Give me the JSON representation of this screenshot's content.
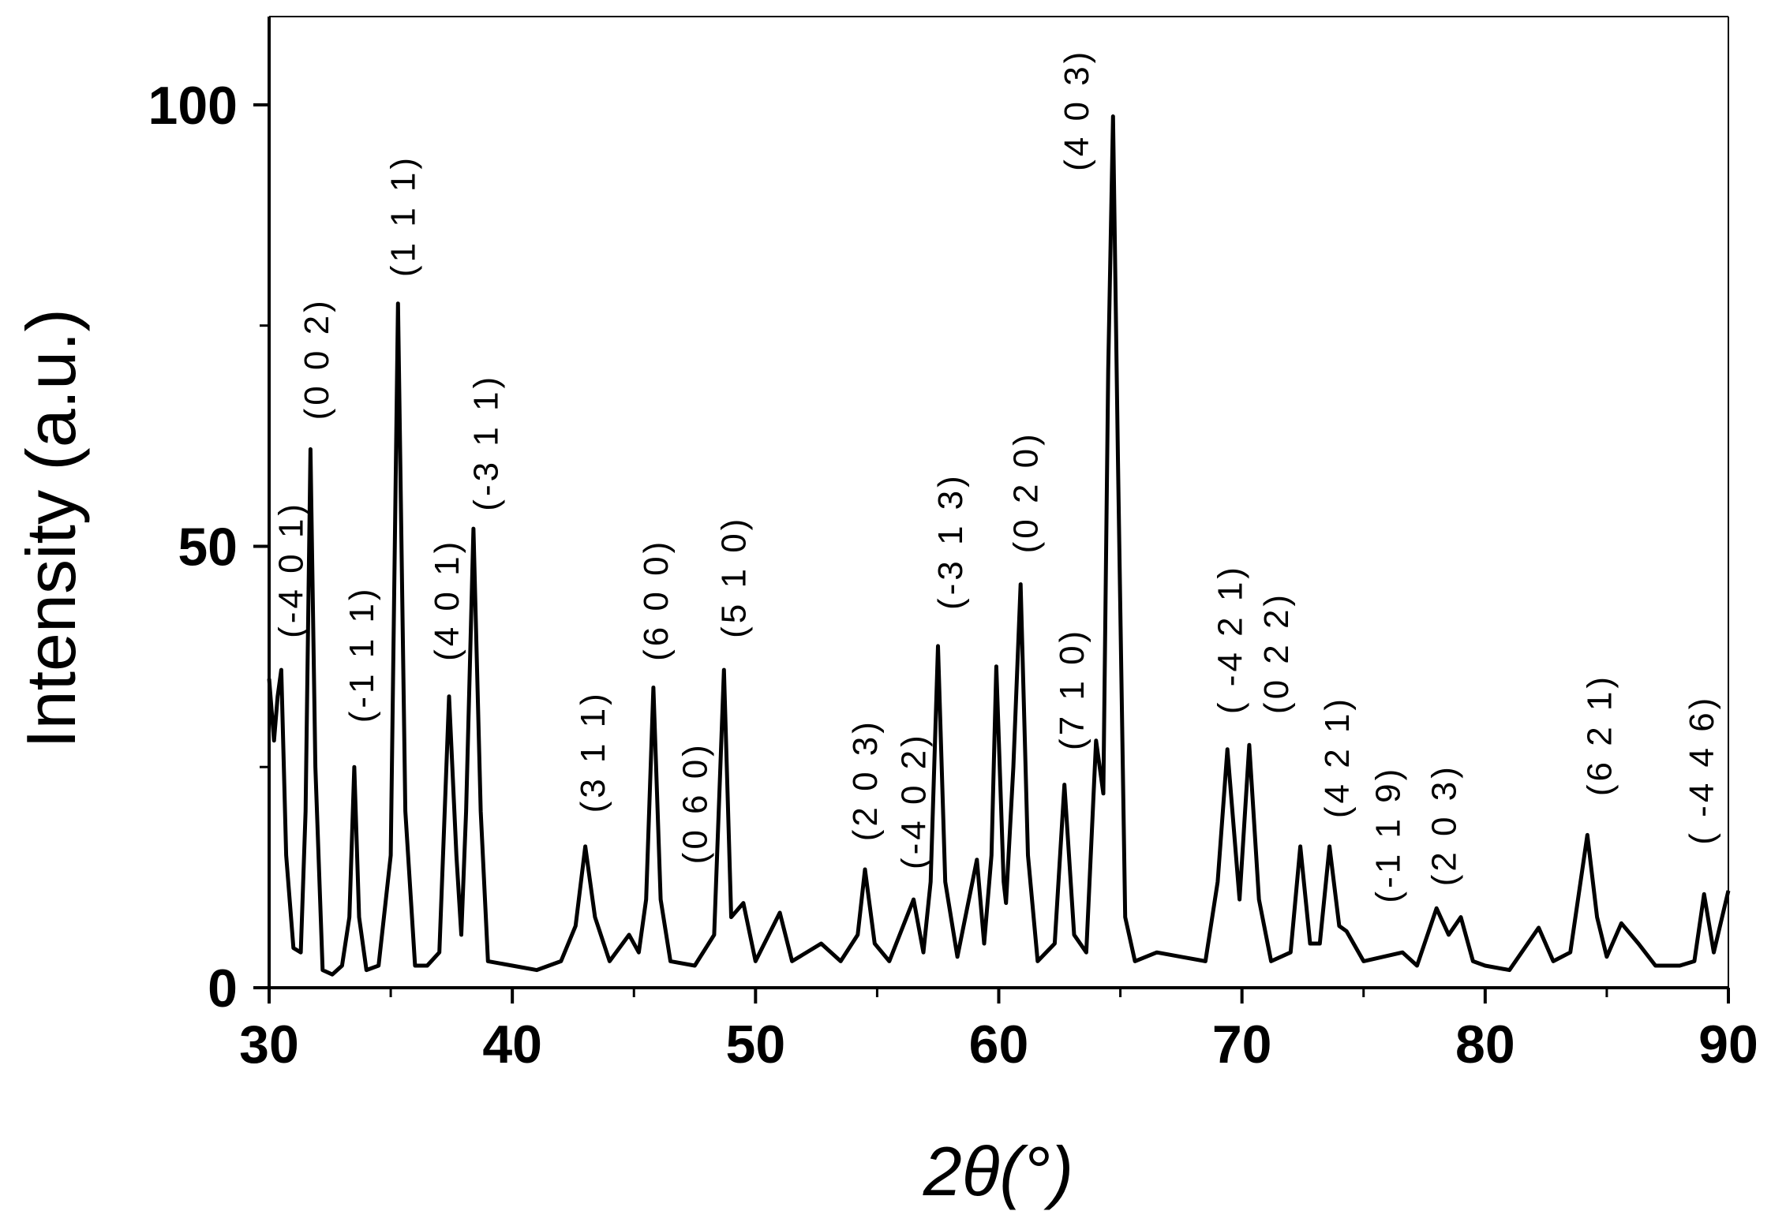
{
  "chart_data": {
    "type": "line",
    "xlabel": "2θ(°)",
    "ylabel": "Intensity (a.u.)",
    "xlim": [
      30,
      90
    ],
    "xticks": [
      30,
      40,
      50,
      60,
      70,
      80,
      90
    ],
    "xminor": [
      35,
      45,
      55,
      65,
      75,
      85
    ],
    "ylim": [
      0,
      110
    ],
    "yticks": [
      0,
      50,
      100
    ],
    "yminor": [
      25,
      75
    ],
    "x": [
      30,
      30.2,
      30.35,
      30.5,
      30.7,
      31.0,
      31.3,
      31.5,
      31.7,
      31.9,
      32.2,
      32.6,
      33.0,
      33.3,
      33.5,
      33.7,
      34.0,
      34.5,
      35.0,
      35.3,
      35.6,
      36.0,
      36.5,
      37.0,
      37.4,
      37.7,
      37.9,
      38.1,
      38.4,
      38.7,
      39.0,
      40,
      41,
      42,
      42.6,
      43.0,
      43.4,
      44,
      44.8,
      45.2,
      45.5,
      45.8,
      46.1,
      46.5,
      47.5,
      48.3,
      48.7,
      49.0,
      49.5,
      50.0,
      51.0,
      51.5,
      52.7,
      53.5,
      54.2,
      54.5,
      54.9,
      55.5,
      56.5,
      56.9,
      57.2,
      57.5,
      57.8,
      58.3,
      59.1,
      59.4,
      59.7,
      59.9,
      60.2,
      60.3,
      60.6,
      60.9,
      61.2,
      61.6,
      62.3,
      62.7,
      63.1,
      63.6,
      64.0,
      64.3,
      64.5,
      64.7,
      64.9,
      65.2,
      65.6,
      66.5,
      67.5,
      68.5,
      69.0,
      69.4,
      69.9,
      70.3,
      70.7,
      71.2,
      72.0,
      72.4,
      72.8,
      73.2,
      73.6,
      74.0,
      74.3,
      75,
      76.6,
      77.2,
      78,
      78.5,
      79,
      79.5,
      80,
      81,
      82.2,
      82.8,
      83.5,
      84.2,
      84.6,
      85.0,
      85.6,
      86.3,
      87,
      88,
      88.6,
      89,
      89.4,
      90
    ],
    "series": [
      {
        "color": "#000000",
        "values": [
          35,
          28,
          33,
          36,
          15,
          4.5,
          4,
          20,
          61,
          25,
          2,
          1.5,
          2.5,
          8,
          25,
          8,
          2,
          2.5,
          15,
          77.5,
          20,
          2.5,
          2.5,
          4,
          33,
          15,
          6,
          20,
          52,
          20,
          3,
          2.5,
          2,
          3,
          7,
          16,
          8,
          3,
          6,
          4,
          10,
          34,
          10,
          3,
          2.5,
          6,
          36,
          8,
          9.6,
          3,
          8.5,
          3,
          5,
          3,
          6,
          13.4,
          5,
          3,
          10,
          4,
          12,
          38.7,
          12,
          3.5,
          14.5,
          5,
          15,
          36.4,
          12,
          9.6,
          25,
          45.7,
          15,
          3,
          5,
          23,
          6,
          4,
          28,
          22,
          70,
          98.7,
          60,
          8,
          3,
          4,
          3.5,
          3,
          12,
          27,
          10,
          27.5,
          10,
          3,
          4,
          16,
          5,
          5,
          16,
          7,
          6.4,
          3,
          4,
          2.5,
          9,
          6,
          8,
          3,
          2.5,
          2,
          6.8,
          3,
          4,
          17.3,
          8,
          3.5,
          7.3,
          5,
          2.5,
          2.5,
          3,
          10.6,
          4,
          11
        ]
      }
    ],
    "annotations": [
      {
        "text": "(-4 0 1)",
        "x": 30.9,
        "y": 39.6
      },
      {
        "text": "(0 0 2)",
        "x": 31.95,
        "y": 64.3
      },
      {
        "text": "(-1 1 1)",
        "x": 33.8,
        "y": 30
      },
      {
        "text": "(1 1 1)",
        "x": 35.5,
        "y": 80.5
      },
      {
        "text": "(4 0 1)",
        "x": 37.3,
        "y": 37
      },
      {
        "text": "(-3 1 1)",
        "x": 38.9,
        "y": 54
      },
      {
        "text": "(3 1 1)",
        "x": 43.3,
        "y": 19.8
      },
      {
        "text": "(6 0 0)",
        "x": 45.9,
        "y": 37
      },
      {
        "text": "(0 6 0)",
        "x": 47.5,
        "y": 14
      },
      {
        "text": "(5 1 0)",
        "x": 49.1,
        "y": 39.6
      },
      {
        "text": "(2 0 3)",
        "x": 54.5,
        "y": 16.6
      },
      {
        "text": "(-4 0 2)",
        "x": 56.5,
        "y": 13.4
      },
      {
        "text": "(-3 1 3)",
        "x": 58.0,
        "y": 42.8
      },
      {
        "text": "(0 2 0)",
        "x": 61.1,
        "y": 49.2
      },
      {
        "text": "(7 1 0)",
        "x": 63.0,
        "y": 26.9
      },
      {
        "text": "(4 0 3)",
        "x": 63.2,
        "y": 92.5
      },
      {
        "text": "( -4 2 1)",
        "x": 69.5,
        "y": 31
      },
      {
        "text": "(0 2 2)",
        "x": 71.4,
        "y": 31
      },
      {
        "text": "(4 2 1)",
        "x": 73.9,
        "y": 19.2
      },
      {
        "text": "(-1 1 9)",
        "x": 76.0,
        "y": 9.6
      },
      {
        "text": "(2 0 3)",
        "x": 78.3,
        "y": 11.5
      },
      {
        "text": "(6 2 1)",
        "x": 84.7,
        "y": 21.7
      },
      {
        "text": "( -4 4 6)",
        "x": 88.9,
        "y": 16.2
      }
    ]
  }
}
